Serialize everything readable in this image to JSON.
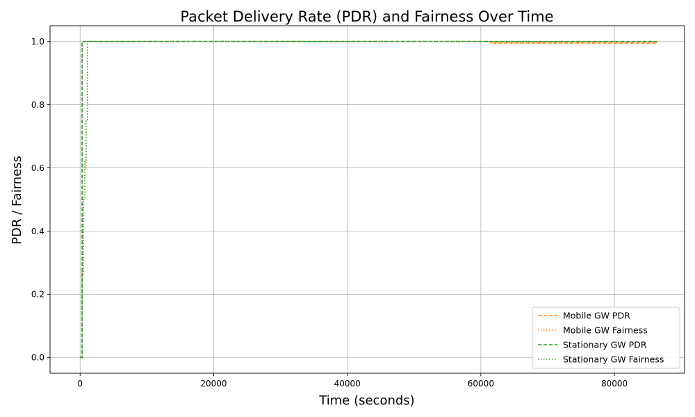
{
  "chart_data": {
    "type": "line",
    "title": "Packet Delivery Rate (PDR) and Fairness Over Time",
    "xlabel": "Time (seconds)",
    "ylabel": "PDR / Fairness",
    "xlim": [
      -4500,
      90500
    ],
    "ylim": [
      -0.05,
      1.05
    ],
    "xticks": [
      0,
      20000,
      40000,
      60000,
      80000
    ],
    "xtick_labels": [
      "0",
      "20000",
      "40000",
      "60000",
      "80000"
    ],
    "yticks": [
      0.0,
      0.2,
      0.4,
      0.6,
      0.8,
      1.0
    ],
    "ytick_labels": [
      "0.0",
      "0.2",
      "0.4",
      "0.6",
      "0.8",
      "1.0"
    ],
    "grid": true,
    "legend_position": "lower-right",
    "series": [
      {
        "name": "Mobile GW PDR",
        "color": "#ff7f0e",
        "linestyle": "dashed",
        "x": [
          0,
          300,
          300,
          61500,
          61500,
          86400
        ],
        "y": [
          0.0,
          0.0,
          1.0,
          1.0,
          0.995,
          0.995
        ]
      },
      {
        "name": "Mobile GW Fairness",
        "color": "#ff7f0e",
        "linestyle": "dotted",
        "x": [
          0,
          300,
          300,
          500,
          500,
          700,
          700,
          900,
          900,
          1100,
          1100,
          61500,
          61500,
          86400
        ],
        "y": [
          0.0,
          0.0,
          0.27,
          0.27,
          0.5,
          0.5,
          0.6,
          0.6,
          0.75,
          0.75,
          1.0,
          1.0,
          0.998,
          0.998
        ]
      },
      {
        "name": "Stationary GW PDR",
        "color": "#2ca02c",
        "linestyle": "dashed",
        "x": [
          0,
          300,
          300,
          86400
        ],
        "y": [
          0.0,
          0.0,
          1.0,
          1.0
        ]
      },
      {
        "name": "Stationary GW Fairness",
        "color": "#2ca02c",
        "linestyle": "dotted",
        "x": [
          0,
          300,
          300,
          500,
          500,
          700,
          700,
          900,
          900,
          1100,
          1100,
          86400
        ],
        "y": [
          0.0,
          0.0,
          0.26,
          0.26,
          0.5,
          0.5,
          0.62,
          0.62,
          0.75,
          0.75,
          1.0,
          1.0
        ]
      }
    ]
  }
}
